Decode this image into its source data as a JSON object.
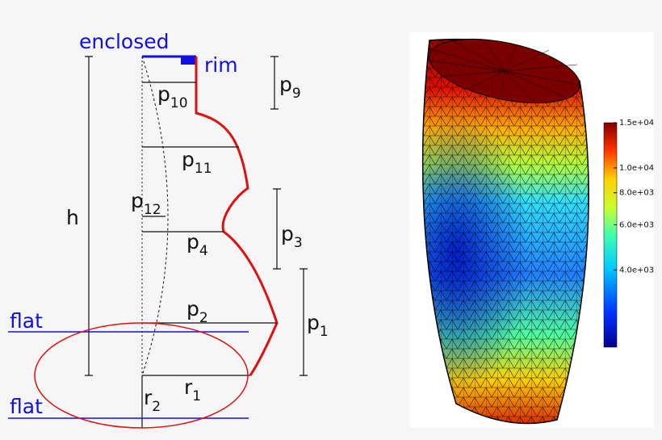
{
  "left_diagram": {
    "top_label": "enclosed",
    "rim_label": "rim",
    "height_label": "h",
    "flat_upper": "flat",
    "flat_lower": "flat",
    "parameters": {
      "p9": {
        "base": "p",
        "sub": "9"
      },
      "p10": {
        "base": "p",
        "sub": "10"
      },
      "p11": {
        "base": "p",
        "sub": "11"
      },
      "p12": {
        "base": "p",
        "sub": "12"
      },
      "p4": {
        "base": "p",
        "sub": "4"
      },
      "p3": {
        "base": "p",
        "sub": "3"
      },
      "p2": {
        "base": "p",
        "sub": "2"
      },
      "p1": {
        "base": "p",
        "sub": "1"
      },
      "r1": {
        "base": "r",
        "sub": "1"
      },
      "r2": {
        "base": "r",
        "sub": "2"
      }
    }
  },
  "colorbar": {
    "scale": "log",
    "range": [
      2000,
      15000
    ],
    "ticks": [
      {
        "value": 15000,
        "label": "1.5e+04"
      },
      {
        "value": 10000,
        "label": "1.0e+04"
      },
      {
        "value": 8000,
        "label": "8.0e+03"
      },
      {
        "value": 6000,
        "label": "6.0e+03"
      },
      {
        "value": 4000,
        "label": "4.0e+03"
      }
    ]
  }
}
